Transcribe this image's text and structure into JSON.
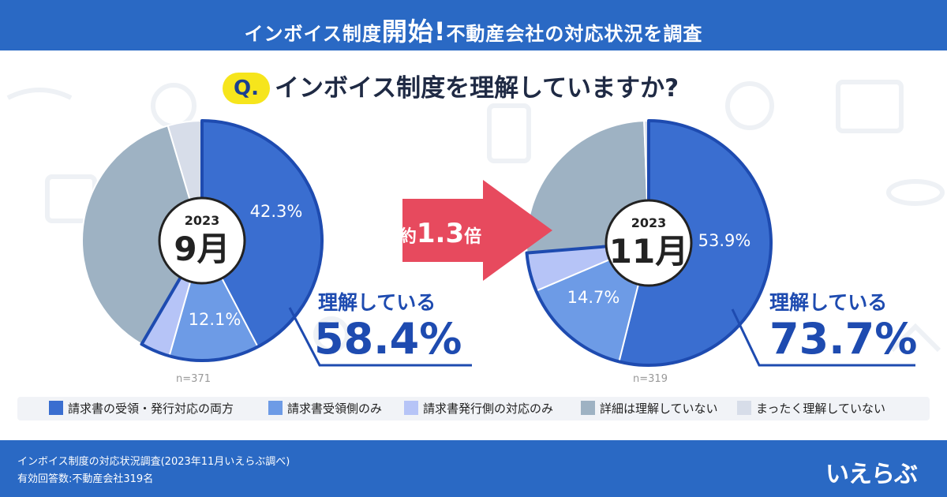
{
  "header": {
    "title_part1": "インボイス制度",
    "title_emph": "開始!",
    "title_part2": "不動産会社の対応状況を調査"
  },
  "question": {
    "badge": "Q.",
    "text": "インボイス制度を理解していますか?"
  },
  "comparison": {
    "prefix": "約",
    "value": "1.3",
    "suffix": "倍"
  },
  "legend": [
    {
      "label": "請求書の受領・発行対応の両方",
      "color": "#3a6ed0"
    },
    {
      "label": "請求書受領側のみ",
      "color": "#6d9be6"
    },
    {
      "label": "請求書発行側の対応のみ",
      "color": "#b6c4f7"
    },
    {
      "label": "詳細は理解していない",
      "color": "#9eb2c3"
    },
    {
      "label": "まったく理解していない",
      "color": "#d7dde9"
    }
  ],
  "chart_data": [
    {
      "type": "pie",
      "year": "2023",
      "month": "9月",
      "n": "n=371",
      "categories": [
        "請求書の受領・発行対応の両方",
        "請求書受領側のみ",
        "請求書発行側の対応のみ",
        "詳細は理解していない",
        "まったく理解していない"
      ],
      "values": [
        42.3,
        12.1,
        4.0,
        37.0,
        4.6
      ],
      "data_labels": [
        "42.3%",
        "12.1%",
        "",
        "",
        ""
      ],
      "highlight_label": "理解している",
      "highlight_value": "58.4%"
    },
    {
      "type": "pie",
      "year": "2023",
      "month": "11月",
      "n": "n=319",
      "categories": [
        "請求書の受領・発行対応の両方",
        "請求書受領側のみ",
        "請求書発行側の対応のみ",
        "詳細は理解していない",
        "まったく理解していない"
      ],
      "values": [
        53.9,
        14.7,
        5.1,
        25.7,
        0.6
      ],
      "data_labels": [
        "53.9%",
        "14.7%",
        "",
        "",
        ""
      ],
      "highlight_label": "理解している",
      "highlight_value": "73.7%"
    }
  ],
  "footer": {
    "survey": "インボイス制度の対応状況調査(2023年11月いえらぶ調べ)",
    "respondents": "有効回答数:不動産会社319名",
    "logo": "いえらぶ"
  }
}
